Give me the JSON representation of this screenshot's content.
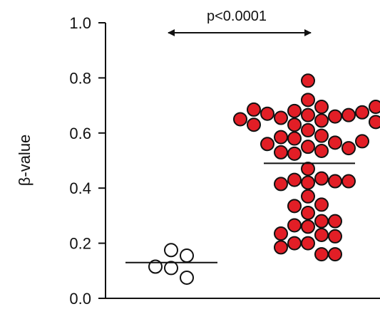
{
  "chart_data": {
    "type": "scatter",
    "title": "",
    "xlabel": "",
    "ylabel": "β-value",
    "ylim": [
      0,
      1.0
    ],
    "yticks": [
      "0.0",
      "0.2",
      "0.4",
      "0.6",
      "0.8",
      "1.0"
    ],
    "grid": false,
    "annotation": "p<0.0001",
    "groups": [
      {
        "fill": "#ffffff",
        "stroke": "#111111",
        "mean": 0.13,
        "values": [
          0.11,
          0.175,
          0.155,
          0.115,
          0.075
        ]
      },
      {
        "fill": "#e21e26",
        "stroke": "#111111",
        "mean": 0.49,
        "values": [
          0.79,
          0.72,
          0.695,
          0.68,
          0.665,
          0.66,
          0.655,
          0.665,
          0.67,
          0.675,
          0.685,
          0.695,
          0.645,
          0.65,
          0.63,
          0.61,
          0.63,
          0.64,
          0.645,
          0.59,
          0.58,
          0.565,
          0.55,
          0.535,
          0.525,
          0.53,
          0.545,
          0.56,
          0.57,
          0.585,
          0.47,
          0.435,
          0.42,
          0.43,
          0.425,
          0.415,
          0.425,
          0.37,
          0.34,
          0.335,
          0.31,
          0.28,
          0.26,
          0.265,
          0.28,
          0.23,
          0.225,
          0.235,
          0.2,
          0.2,
          0.185,
          0.16,
          0.16
        ]
      }
    ]
  }
}
